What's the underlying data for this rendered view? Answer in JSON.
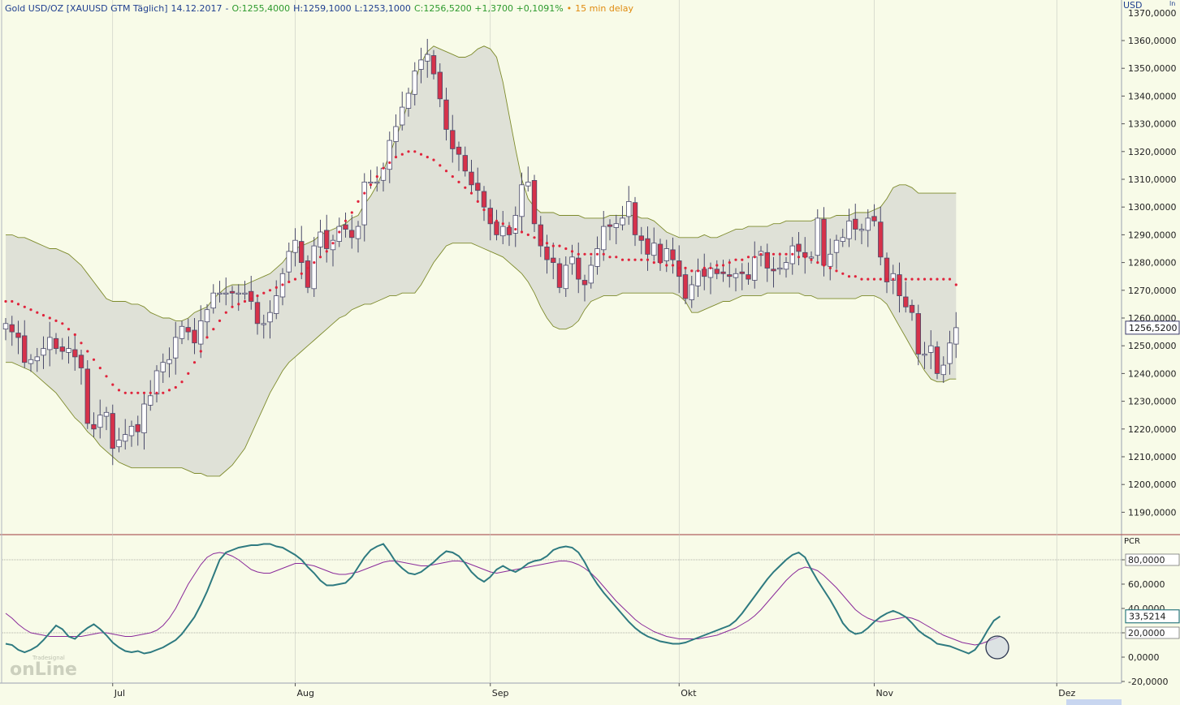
{
  "header": {
    "instrument": "Gold USD/OZ [XAUUSD GTM Täglich]",
    "date": "14.12.2017",
    "sep": "-",
    "open": "O:1255,4000",
    "high": "H:1259,1000",
    "low": "L:1253,1000",
    "close": "C:1256,5200 +1,3700 +0,1091%",
    "delay_dot": "•",
    "delay": "15 min delay",
    "currency": "USD",
    "corner_mark": "ln"
  },
  "colors": {
    "background": "#f8fbe8",
    "band_fill": "#dfe1d7",
    "band_line": "#7e8b2c",
    "up_candle_fill": "#ffffff",
    "down_candle_fill": "#d6324a",
    "candle_outline": "#4a4a6a",
    "sma_dots": "#e0243c",
    "pcr_line": "#2e7a80",
    "signal_line": "#8a2a9a",
    "header_blue": "#1f3f8f",
    "header_green": "#2d9a2d",
    "header_orange": "#e08b10"
  },
  "watermark": {
    "small": "Tradesignal",
    "big": "onLine"
  },
  "chart_data": [
    {
      "type": "candlestick",
      "title": "Gold USD/OZ [XAUUSD GTM Täglich]",
      "ylabel": "USD",
      "ylim": [
        1180,
        1372
      ],
      "y_ticks": [
        "1360,0000",
        "1350,0000",
        "1340,0000",
        "1330,0000",
        "1320,0000",
        "1310,0000",
        "1300,0000",
        "1290,0000",
        "1280,0000",
        "1270,0000",
        "1260,0000",
        "1250,0000",
        "1240,0000",
        "1230,0000",
        "1220,0000",
        "1210,0000",
        "1200,0000",
        "1190,0000"
      ],
      "y_tick_values": [
        1360,
        1350,
        1340,
        1330,
        1320,
        1310,
        1300,
        1290,
        1280,
        1270,
        1260,
        1250,
        1240,
        1230,
        1220,
        1210,
        1200,
        1190
      ],
      "top_partial_tick": "1370,0000",
      "last_price_label": "1256,5200",
      "last_price": 1256.52,
      "x_labels": [
        "Jul",
        "Aug",
        "Sep",
        "Okt",
        "Nov",
        "Dez"
      ],
      "x_label_index": [
        17,
        46,
        77,
        107,
        138,
        167
      ],
      "closes": [
        1258,
        1255,
        1253,
        1244,
        1245,
        1246,
        1249,
        1253,
        1249,
        1248,
        1249,
        1246,
        1242,
        1222,
        1220,
        1225,
        1226,
        1213,
        1216,
        1218,
        1221,
        1219,
        1229,
        1232,
        1241,
        1244,
        1245,
        1253,
        1257,
        1255,
        1251,
        1259,
        1263,
        1269,
        1269,
        1269,
        1269,
        1269,
        1269,
        1266,
        1258,
        1258,
        1262,
        1268,
        1276,
        1284,
        1288,
        1280,
        1271,
        1286,
        1291,
        1285,
        1288,
        1293,
        1292,
        1289,
        1293,
        1309,
        1309,
        1309,
        1314,
        1324,
        1329,
        1336,
        1341,
        1349,
        1353,
        1355,
        1348,
        1339,
        1328,
        1321,
        1319,
        1313,
        1308,
        1306,
        1300,
        1294,
        1290,
        1293,
        1290,
        1297,
        1308,
        1309,
        1294,
        1286,
        1281,
        1280,
        1271,
        1279,
        1282,
        1274,
        1272,
        1279,
        1285,
        1293,
        1293,
        1294,
        1296,
        1302,
        1290,
        1288,
        1283,
        1287,
        1280,
        1285,
        1281,
        1275,
        1267,
        1272,
        1277,
        1275,
        1278,
        1276,
        1276,
        1275,
        1276,
        1276,
        1274,
        1282,
        1284,
        1278,
        1277,
        1278,
        1280,
        1286,
        1284,
        1282,
        1282,
        1296,
        1279,
        1283,
        1288,
        1289,
        1295,
        1292,
        1292,
        1296,
        1295,
        1282,
        1273,
        1276,
        1268,
        1264,
        1262,
        1247,
        1247,
        1250,
        1240,
        1243,
        1251,
        1256.52
      ],
      "bollinger_upper": [
        1290,
        1290,
        1289,
        1289,
        1288,
        1287,
        1286,
        1285,
        1285,
        1284,
        1283,
        1281,
        1279,
        1276,
        1273,
        1270,
        1267,
        1266,
        1266,
        1266,
        1265,
        1265,
        1264,
        1262,
        1261,
        1260,
        1260,
        1259,
        1259,
        1260,
        1262,
        1263,
        1264,
        1267,
        1269,
        1271,
        1272,
        1272,
        1272,
        1273,
        1274,
        1275,
        1276,
        1278,
        1280,
        1283,
        1285,
        1286,
        1287,
        1288,
        1290,
        1291,
        1292,
        1293,
        1294,
        1296,
        1297,
        1301,
        1304,
        1308,
        1313,
        1319,
        1325,
        1331,
        1338,
        1345,
        1352,
        1356,
        1358,
        1357,
        1356,
        1355,
        1354,
        1354,
        1355,
        1357,
        1358,
        1357,
        1354,
        1345,
        1333,
        1321,
        1310,
        1303,
        1300,
        1298,
        1298,
        1298,
        1297,
        1297,
        1297,
        1297,
        1296,
        1296,
        1296,
        1296,
        1297,
        1297,
        1297,
        1297,
        1297,
        1296,
        1296,
        1295,
        1293,
        1291,
        1290,
        1289,
        1289,
        1289,
        1289,
        1290,
        1289,
        1289,
        1290,
        1291,
        1292,
        1292,
        1293,
        1293,
        1293,
        1293,
        1294,
        1294,
        1295,
        1295,
        1295,
        1295,
        1295,
        1296,
        1296,
        1296,
        1297,
        1297,
        1297,
        1298,
        1298,
        1298,
        1299,
        1300,
        1303,
        1307,
        1308,
        1308,
        1307,
        1305,
        1305,
        1305,
        1305,
        1305,
        1305,
        1305
      ],
      "bollinger_middle": [
        1266,
        1266,
        1265,
        1264,
        1263,
        1262,
        1261,
        1260,
        1259,
        1258,
        1256,
        1254,
        1251,
        1248,
        1245,
        1242,
        1239,
        1236,
        1234,
        1233,
        1233,
        1233,
        1233,
        1233,
        1233,
        1233,
        1234,
        1235,
        1237,
        1240,
        1244,
        1248,
        1253,
        1256,
        1259,
        1262,
        1264,
        1265,
        1266,
        1267,
        1268,
        1269,
        1270,
        1271,
        1272,
        1273,
        1274,
        1276,
        1278,
        1280,
        1282,
        1284,
        1287,
        1291,
        1295,
        1298,
        1302,
        1305,
        1308,
        1311,
        1314,
        1316,
        1318,
        1319,
        1320,
        1320,
        1319,
        1318,
        1317,
        1315,
        1313,
        1311,
        1309,
        1307,
        1305,
        1302,
        1299,
        1297,
        1295,
        1294,
        1293,
        1292,
        1291,
        1290,
        1289,
        1288,
        1287,
        1286,
        1286,
        1285,
        1284,
        1283,
        1283,
        1283,
        1283,
        1283,
        1282,
        1282,
        1281,
        1281,
        1281,
        1281,
        1281,
        1280,
        1280,
        1279,
        1279,
        1278,
        1278,
        1277,
        1277,
        1278,
        1278,
        1279,
        1279,
        1280,
        1281,
        1281,
        1282,
        1282,
        1283,
        1283,
        1283,
        1283,
        1283,
        1283,
        1282,
        1282,
        1281,
        1280,
        1279,
        1278,
        1277,
        1276,
        1275,
        1275,
        1274,
        1274,
        1274,
        1274,
        1274,
        1274,
        1274,
        1274,
        1274,
        1274,
        1274,
        1274,
        1274,
        1274,
        1274,
        1272
      ],
      "bollinger_lower": [
        1244,
        1244,
        1243,
        1242,
        1241,
        1239,
        1237,
        1235,
        1233,
        1230,
        1227,
        1224,
        1222,
        1219,
        1217,
        1214,
        1212,
        1210,
        1208,
        1207,
        1206,
        1206,
        1206,
        1206,
        1206,
        1206,
        1206,
        1206,
        1206,
        1205,
        1204,
        1204,
        1203,
        1203,
        1203,
        1205,
        1207,
        1210,
        1213,
        1218,
        1223,
        1228,
        1233,
        1237,
        1241,
        1244,
        1246,
        1248,
        1250,
        1252,
        1254,
        1256,
        1258,
        1260,
        1261,
        1263,
        1264,
        1265,
        1265,
        1266,
        1267,
        1268,
        1268,
        1269,
        1269,
        1269,
        1272,
        1276,
        1280,
        1283,
        1286,
        1287,
        1287,
        1287,
        1287,
        1286,
        1285,
        1284,
        1283,
        1282,
        1280,
        1278,
        1276,
        1273,
        1269,
        1264,
        1260,
        1257,
        1256,
        1256,
        1257,
        1259,
        1263,
        1266,
        1267,
        1268,
        1268,
        1268,
        1269,
        1269,
        1269,
        1269,
        1269,
        1269,
        1269,
        1269,
        1269,
        1268,
        1266,
        1262,
        1262,
        1263,
        1264,
        1265,
        1266,
        1266,
        1267,
        1268,
        1268,
        1268,
        1268,
        1269,
        1269,
        1269,
        1269,
        1269,
        1269,
        1268,
        1268,
        1267,
        1267,
        1267,
        1267,
        1267,
        1267,
        1267,
        1268,
        1268,
        1268,
        1267,
        1265,
        1261,
        1257,
        1253,
        1249,
        1245,
        1241,
        1238,
        1237,
        1237,
        1238,
        1238
      ]
    },
    {
      "type": "line",
      "title": "PCR",
      "ylim": [
        -20,
        100
      ],
      "y_ticks": [
        "80,0000",
        "60,0000",
        "40,0000",
        "20,0000",
        "0,0000",
        "-20,0000"
      ],
      "y_tick_values": [
        80,
        60,
        40,
        20,
        0,
        -20
      ],
      "reference_lines": [
        80,
        20
      ],
      "last_value_label": "33,5214",
      "series": [
        {
          "values": [
            11,
            10,
            6,
            4,
            6,
            9,
            14,
            20,
            26,
            23,
            17,
            15,
            20,
            24,
            27,
            23,
            18,
            12,
            8,
            5,
            4,
            5,
            3,
            4,
            6,
            8,
            11,
            14,
            19,
            26,
            33,
            43,
            54,
            67,
            80,
            86,
            88,
            90,
            91,
            92,
            92,
            93,
            93,
            91,
            90,
            87,
            84,
            80,
            74,
            69,
            63,
            59,
            59,
            60,
            61,
            66,
            74,
            82,
            88,
            91,
            93,
            86,
            78,
            73,
            69,
            68,
            70,
            74,
            78,
            83,
            87,
            86,
            83,
            77,
            70,
            65,
            62,
            66,
            72,
            75,
            72,
            70,
            73,
            77,
            79,
            80,
            83,
            88,
            90,
            91,
            90,
            86,
            78,
            68,
            60,
            53,
            47,
            41,
            35,
            29,
            24,
            20,
            17,
            15,
            13,
            12,
            11,
            11,
            12,
            14,
            16,
            18,
            20,
            22,
            24,
            26,
            30,
            36,
            43,
            50,
            57,
            64,
            70,
            75,
            80,
            84,
            86,
            82,
            72,
            63,
            55,
            47,
            38,
            28,
            22,
            19,
            20,
            24,
            29,
            33,
            36,
            38,
            36,
            33,
            28,
            22,
            18,
            15,
            11,
            10,
            9,
            7,
            5,
            3,
            6,
            13,
            22,
            30,
            33.52
          ]
        },
        {
          "values": [
            36,
            32,
            27,
            23,
            20,
            19,
            18,
            17,
            17,
            17,
            17,
            17,
            17,
            18,
            19,
            20,
            20,
            19,
            18,
            17,
            17,
            18,
            19,
            20,
            22,
            26,
            32,
            40,
            50,
            60,
            68,
            76,
            82,
            85,
            86,
            85,
            83,
            80,
            76,
            72,
            70,
            69,
            69,
            71,
            73,
            75,
            77,
            77,
            76,
            75,
            73,
            71,
            69,
            68,
            68,
            69,
            70,
            72,
            74,
            76,
            78,
            79,
            79,
            78,
            77,
            76,
            75,
            75,
            76,
            77,
            78,
            79,
            79,
            78,
            76,
            74,
            72,
            70,
            69,
            70,
            71,
            72,
            73,
            74,
            75,
            76,
            77,
            78,
            79,
            79,
            78,
            76,
            73,
            69,
            64,
            58,
            52,
            46,
            41,
            36,
            31,
            27,
            24,
            21,
            19,
            17,
            16,
            15,
            15,
            15,
            15,
            16,
            17,
            18,
            20,
            22,
            24,
            27,
            30,
            34,
            39,
            45,
            51,
            57,
            63,
            68,
            72,
            74,
            73,
            71,
            67,
            62,
            57,
            51,
            45,
            39,
            35,
            32,
            30,
            29,
            30,
            31,
            32,
            33,
            32,
            30,
            27,
            24,
            21,
            18,
            16,
            14,
            12,
            11,
            10,
            11,
            13,
            15,
            17
          ]
        }
      ]
    }
  ]
}
